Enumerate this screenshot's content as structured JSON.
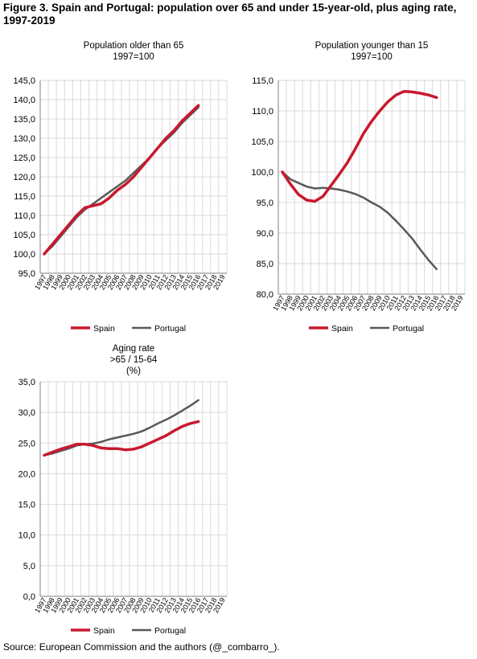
{
  "figure": {
    "title": "Figure 3. Spain and Portugal: population over 65 and under 15-year-old, plus aging rate, 1997-2019",
    "source": "Source: European Commission and the authors (@_combarro_)."
  },
  "colors": {
    "spain": "#c8192e",
    "portugal": "#595959",
    "grid": "#d9d9d9",
    "axis": "#808080"
  },
  "chart_data": [
    {
      "type": "line",
      "title_lines": [
        "Population older than 65",
        "1997=100"
      ],
      "x": [
        "1997",
        "1998",
        "1999",
        "2000",
        "2001",
        "2002",
        "2003",
        "2004",
        "2005",
        "2006",
        "2007",
        "2008",
        "2009",
        "2010",
        "2011",
        "2012",
        "2013",
        "2014",
        "2015",
        "2016",
        "2017",
        "2018",
        "2019"
      ],
      "ylim": [
        95,
        145
      ],
      "yticks": [
        "95,0",
        "100,0",
        "105,0",
        "110,0",
        "115,0",
        "120,0",
        "125,0",
        "130,0",
        "135,0",
        "140,0",
        "145,0"
      ],
      "grid": true,
      "legend_position": "bottom",
      "series": [
        {
          "name": "Spain",
          "values": [
            100.0,
            102.5,
            105.0,
            107.5,
            110.0,
            112.0,
            112.5,
            113.0,
            114.5,
            116.5,
            118.0,
            120.0,
            122.5,
            125.0,
            127.5,
            130.0,
            132.0,
            134.5,
            136.5,
            138.5,
            null,
            null,
            null
          ]
        },
        {
          "name": "Portugal",
          "values": [
            100.0,
            102.0,
            104.5,
            107.0,
            109.5,
            111.5,
            113.0,
            114.5,
            116.0,
            117.5,
            119.0,
            121.0,
            123.0,
            125.0,
            127.5,
            129.5,
            131.5,
            134.0,
            136.0,
            138.0,
            null,
            null,
            null
          ]
        }
      ]
    },
    {
      "type": "line",
      "title_lines": [
        "Population younger than 15",
        "1997=100"
      ],
      "x": [
        "1997",
        "1998",
        "1999",
        "2000",
        "2001",
        "2002",
        "2003",
        "2004",
        "2005",
        "2006",
        "2007",
        "2008",
        "2009",
        "2010",
        "2011",
        "2012",
        "2013",
        "2014",
        "2015",
        "2016",
        "2017",
        "2018",
        "2019"
      ],
      "ylim": [
        80,
        115
      ],
      "yticks": [
        "80,0",
        "85,0",
        "90,0",
        "95,0",
        "100,0",
        "105,0",
        "110,0",
        "115,0"
      ],
      "grid": true,
      "legend_position": "bottom",
      "series": [
        {
          "name": "Spain",
          "values": [
            100.0,
            98.0,
            96.3,
            95.4,
            95.2,
            96.0,
            97.8,
            99.6,
            101.5,
            103.8,
            106.3,
            108.3,
            110.0,
            111.5,
            112.6,
            113.2,
            113.1,
            112.9,
            112.6,
            112.2,
            null,
            null,
            null
          ]
        },
        {
          "name": "Portugal",
          "values": [
            100.0,
            98.8,
            98.2,
            97.6,
            97.3,
            97.4,
            97.3,
            97.1,
            96.8,
            96.4,
            95.8,
            95.0,
            94.3,
            93.3,
            92.0,
            90.6,
            89.1,
            87.3,
            85.6,
            84.1,
            null,
            null,
            null
          ]
        }
      ]
    },
    {
      "type": "line",
      "title_lines": [
        "Aging rate",
        ">65 / 15-64",
        "(%)"
      ],
      "x": [
        "1997",
        "1998",
        "1999",
        "2000",
        "2001",
        "2002",
        "2003",
        "2004",
        "2005",
        "2006",
        "2007",
        "2008",
        "2009",
        "2010",
        "2011",
        "2012",
        "2013",
        "2014",
        "2015",
        "2016",
        "2017",
        "2018",
        "2019"
      ],
      "ylim": [
        0,
        35
      ],
      "yticks": [
        "0,0",
        "5,0",
        "10,0",
        "15,0",
        "20,0",
        "25,0",
        "30,0",
        "35,0"
      ],
      "grid": true,
      "legend_position": "bottom",
      "series": [
        {
          "name": "Spain",
          "values": [
            23.0,
            23.5,
            24.0,
            24.4,
            24.8,
            24.8,
            24.6,
            24.2,
            24.1,
            24.1,
            23.9,
            24.0,
            24.4,
            25.0,
            25.6,
            26.2,
            27.0,
            27.7,
            28.2,
            28.5,
            null,
            null,
            null
          ]
        },
        {
          "name": "Portugal",
          "values": [
            23.0,
            23.3,
            23.7,
            24.1,
            24.6,
            24.8,
            24.9,
            25.2,
            25.6,
            25.9,
            26.2,
            26.5,
            26.9,
            27.5,
            28.2,
            28.8,
            29.5,
            30.3,
            31.1,
            32.0,
            null,
            null,
            null
          ]
        }
      ]
    }
  ]
}
